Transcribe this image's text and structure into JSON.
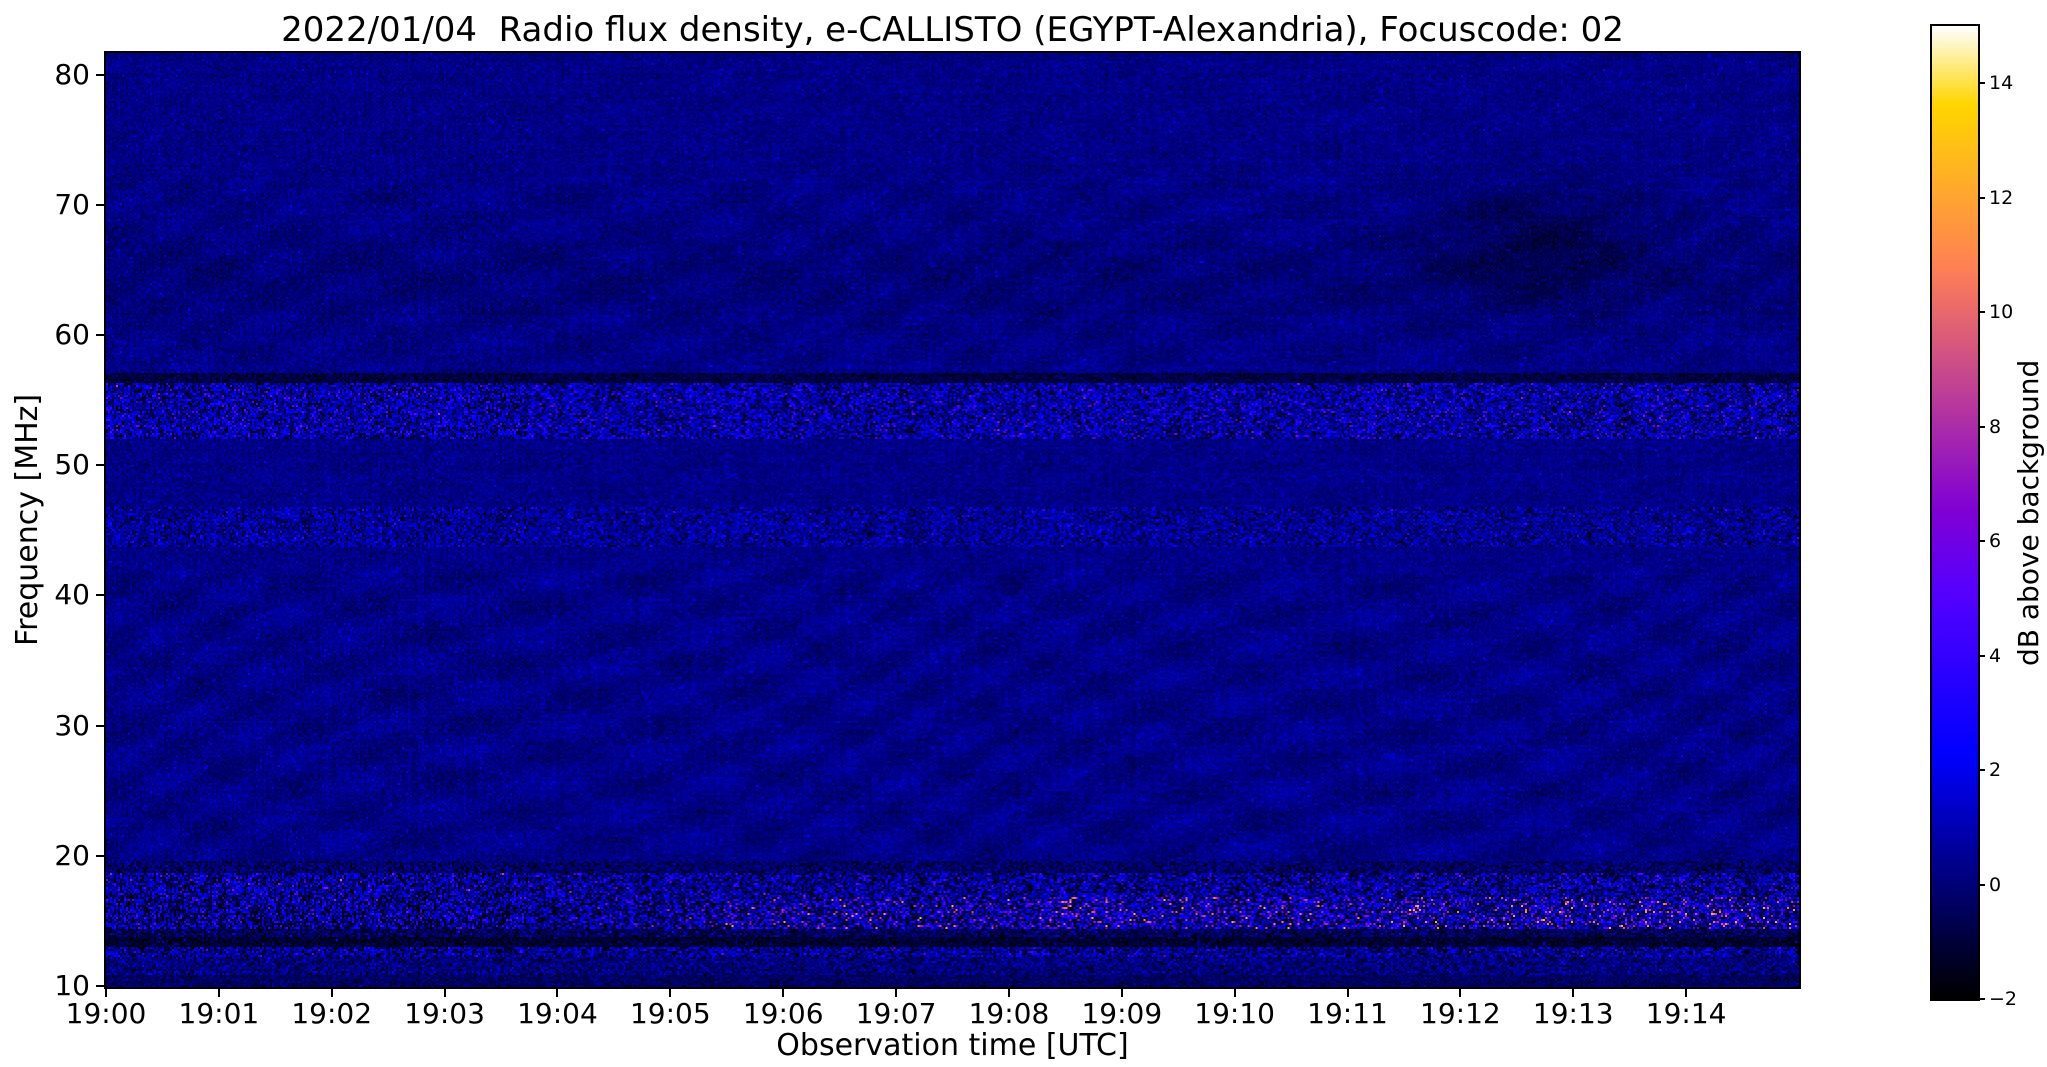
{
  "chart_data": {
    "type": "heatmap",
    "title": "2022/01/04  Radio flux density, e-CALLISTO (EGYPT-Alexandria), Focuscode: 02",
    "xlabel": "Observation time [UTC]",
    "ylabel": "Frequency [MHz]",
    "x_ticks": [
      "19:00",
      "19:01",
      "19:02",
      "19:03",
      "19:04",
      "19:05",
      "19:06",
      "19:07",
      "19:08",
      "19:09",
      "19:10",
      "19:11",
      "19:12",
      "19:13",
      "19:14"
    ],
    "x_tick_seconds": [
      0,
      60,
      120,
      180,
      240,
      300,
      360,
      420,
      480,
      540,
      600,
      660,
      720,
      780,
      840
    ],
    "x_range_seconds": [
      0,
      900
    ],
    "y_ticks": [
      10,
      20,
      30,
      40,
      50,
      60,
      70,
      80
    ],
    "y_range_mhz": [
      9.9,
      81.7
    ],
    "grid": false,
    "colorbar": {
      "label": "dB above background",
      "ticks": [
        -2,
        0,
        2,
        4,
        6,
        8,
        10,
        12,
        14
      ],
      "vmin": -2,
      "vmax": 15,
      "colormap": "gnuplot2"
    },
    "noise_background": {
      "mean": 0.2,
      "sigma": 0.35
    },
    "texture": {
      "seed": 20220104,
      "column_stripe": 0.25,
      "row_stripe": 0.22,
      "wave_amp": 1.0,
      "dark_patch": {
        "t_frac": 0.845,
        "freq_mhz": 67,
        "depth": 0.85
      },
      "dark_band_center_mhz": 64.5,
      "dark_band_depth": 0.22
    },
    "rfi_layers": [
      {
        "f0": 56.3,
        "f1": 57.1,
        "mean": -0.9,
        "sigma": 0.5,
        "label": "dark line ~56.7 MHz"
      },
      {
        "f0": 52.0,
        "f1": 56.3,
        "mean": 0.5,
        "sigma": 1.3,
        "spike_p": 0.1,
        "spike": 3.0,
        "dark_p": 0.08,
        "colmod": 0.8,
        "label": "speckled RFI band 52-56 MHz"
      },
      {
        "f0": 43.8,
        "f1": 46.8,
        "mean": 0.3,
        "sigma": 0.9,
        "spike_p": 0.05,
        "spike": 2.2,
        "dark_p": 0.04,
        "colmod": 0.5,
        "label": "weak RFI band 44-47 MHz"
      },
      {
        "f0": 18.6,
        "f1": 19.6,
        "mean": -0.2,
        "sigma": 0.7,
        "dark_p": 0.1,
        "label": "faint band ~19 MHz"
      },
      {
        "f0": 16.8,
        "f1": 18.6,
        "mean": 0.4,
        "sigma": 1.5,
        "spike_p": 0.07,
        "spike": 3.0,
        "dark_p": 0.12,
        "colmod": 0.8,
        "label": "RFI band 17-18.5 MHz"
      },
      {
        "f0": 14.3,
        "f1": 16.8,
        "mean": 0.6,
        "sigma": 1.8,
        "spike_p": 0.13,
        "spike": 4.5,
        "dark_p": 0.15,
        "colmod": 1.0,
        "ramp": true,
        "super_p": 0.05,
        "label": "strong RFI band ~15-16 MHz, bright magenta bursts intensifying after 19:04"
      },
      {
        "f0": 13.8,
        "f1": 14.3,
        "mean": -0.6,
        "sigma": 0.8,
        "spike_p": 0.03,
        "spike": 2.0,
        "label": "dark lane ~14 MHz"
      },
      {
        "f0": 13.0,
        "f1": 13.8,
        "mean": -1.2,
        "sigma": 0.5,
        "spike_p": 0.02,
        "spike": 2.0,
        "label": "black line ~13.4 MHz"
      },
      {
        "f0": 12.2,
        "f1": 13.0,
        "mean": 0.3,
        "sigma": 1.3,
        "spike_p": 0.05,
        "spike": 2.5,
        "dark_p": 0.1,
        "colmod": 0.7,
        "label": "RFI band ~12.6 MHz"
      },
      {
        "f0": 10.8,
        "f1": 12.2,
        "mean": 0.0,
        "sigma": 0.8,
        "spike_p": 0.02,
        "spike": 1.5,
        "label": "weak band 11-12 MHz"
      },
      {
        "f0": 9.8,
        "f1": 10.8,
        "mean": -0.4,
        "sigma": 0.5,
        "label": "dark bottom edge"
      }
    ]
  }
}
